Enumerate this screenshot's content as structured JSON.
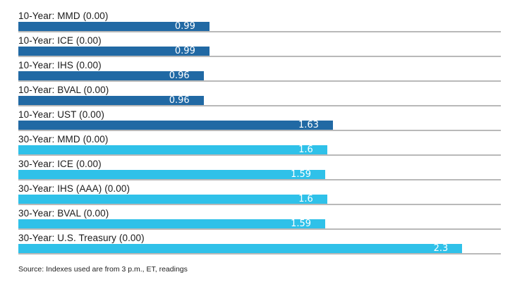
{
  "chart_data": {
    "type": "bar",
    "orientation": "horizontal",
    "title": "",
    "xlabel": "",
    "ylabel": "",
    "xlim": [
      0,
      2.5
    ],
    "grid": "per-row gray baseline track to axis max",
    "legend": "none",
    "rows": [
      {
        "label": "10-Year: MMD (0.00)",
        "value": 0.99,
        "value_label": "0.99",
        "group": "dark_blue"
      },
      {
        "label": "10-Year: ICE (0.00)",
        "value": 0.99,
        "value_label": "0.99",
        "group": "dark_blue"
      },
      {
        "label": "10-Year: IHS (0.00)",
        "value": 0.96,
        "value_label": "0.96",
        "group": "dark_blue"
      },
      {
        "label": "10-Year: BVAL (0.00)",
        "value": 0.96,
        "value_label": "0.96",
        "group": "dark_blue"
      },
      {
        "label": "10-Year: UST (0.00)",
        "value": 1.63,
        "value_label": "1.63",
        "group": "dark_blue"
      },
      {
        "label": "30-Year: MMD (0.00)",
        "value": 1.6,
        "value_label": "1.6",
        "group": "light_blue"
      },
      {
        "label": "30-Year: ICE (0.00)",
        "value": 1.59,
        "value_label": "1.59",
        "group": "light_blue"
      },
      {
        "label": "30-Year: IHS (AAA) (0.00)",
        "value": 1.6,
        "value_label": "1.6",
        "group": "light_blue"
      },
      {
        "label": "30-Year: BVAL (0.00)",
        "value": 1.59,
        "value_label": "1.59",
        "group": "light_blue"
      },
      {
        "label": "30-Year: U.S. Treasury (0.00)",
        "value": 2.3,
        "value_label": "2.3",
        "group": "light_blue"
      }
    ],
    "colors": {
      "dark_blue": "#2169a4",
      "light_blue": "#2fc1e9",
      "track_line": "#b9b9b9",
      "label_text": "#1a1a1a",
      "value_text": "#ffffff"
    },
    "source": "Source: Indexes used are from 3 p.m., ET, readings"
  }
}
